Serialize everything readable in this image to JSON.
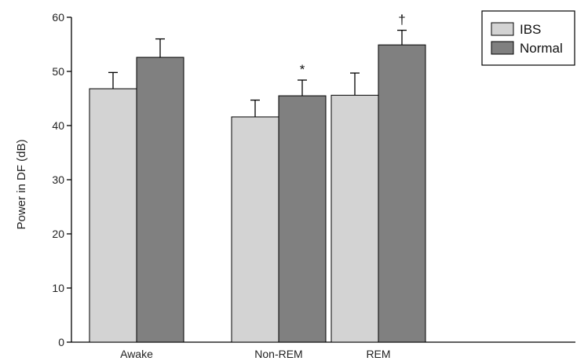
{
  "chart_data": {
    "type": "bar",
    "title": "",
    "xlabel": "",
    "ylabel": "Power in DF (dB)",
    "ylim": [
      0,
      60
    ],
    "yticks": [
      0,
      10,
      20,
      30,
      40,
      50,
      60
    ],
    "grid": false,
    "legend_position": "top-right",
    "categories": [
      "Awake",
      "Non-REM",
      "REM"
    ],
    "series": [
      {
        "name": "IBS",
        "color": "#d3d3d3",
        "values": [
          46.8,
          41.6,
          45.6
        ],
        "errors": [
          3.0,
          3.1,
          4.1
        ]
      },
      {
        "name": "Normal",
        "color": "#808080",
        "values": [
          52.6,
          45.5,
          54.9
        ],
        "errors": [
          3.4,
          2.9,
          2.7
        ]
      }
    ],
    "annotations": [
      {
        "category": "Non-REM",
        "series": "Normal",
        "text": "*"
      },
      {
        "category": "REM",
        "series": "Normal",
        "text": "†"
      }
    ]
  }
}
